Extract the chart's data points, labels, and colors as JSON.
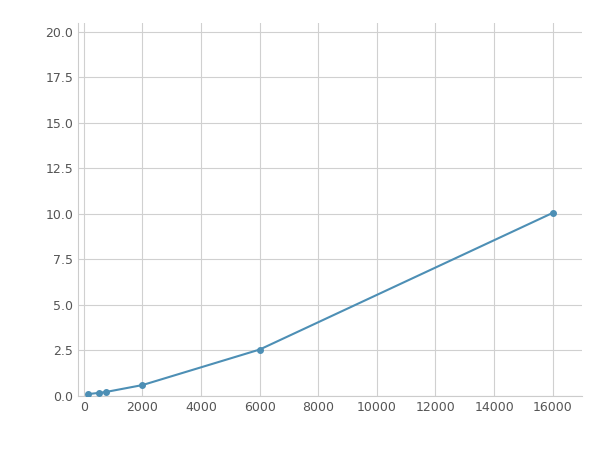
{
  "x": [
    125,
    500,
    750,
    2000,
    6000,
    16000
  ],
  "y": [
    0.1,
    0.17,
    0.22,
    0.6,
    2.55,
    10.05
  ],
  "line_color": "#4d8fb5",
  "marker": "o",
  "markersize": 4,
  "linewidth": 1.5,
  "xlim": [
    -200,
    17000
  ],
  "ylim": [
    0.0,
    20.5
  ],
  "xticks": [
    0,
    2000,
    4000,
    6000,
    8000,
    10000,
    12000,
    14000,
    16000
  ],
  "yticks": [
    0.0,
    2.5,
    5.0,
    7.5,
    10.0,
    12.5,
    15.0,
    17.5,
    20.0
  ],
  "grid": true,
  "background_color": "#ffffff",
  "plot_background": "#ffffff",
  "grid_color": "#d0d0d0",
  "tick_labelsize": 9
}
